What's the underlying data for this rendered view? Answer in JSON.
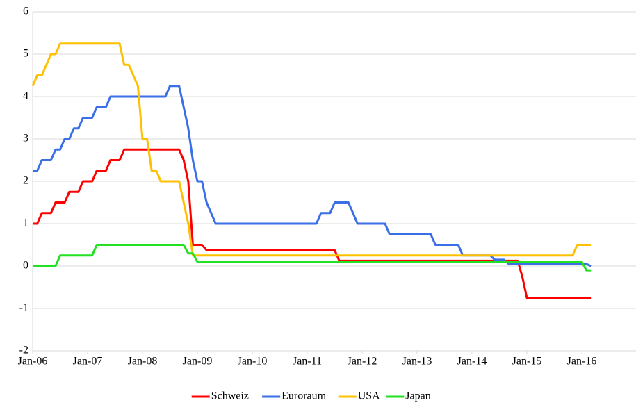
{
  "chart_data": {
    "type": "line",
    "x": [
      "2006-01",
      "2006-02",
      "2006-03",
      "2006-04",
      "2006-05",
      "2006-06",
      "2006-07",
      "2006-08",
      "2006-09",
      "2006-10",
      "2006-11",
      "2006-12",
      "2007-01",
      "2007-02",
      "2007-03",
      "2007-04",
      "2007-05",
      "2007-06",
      "2007-07",
      "2007-08",
      "2007-09",
      "2007-10",
      "2007-11",
      "2007-12",
      "2008-01",
      "2008-02",
      "2008-03",
      "2008-04",
      "2008-05",
      "2008-06",
      "2008-07",
      "2008-08",
      "2008-09",
      "2008-10",
      "2008-11",
      "2008-12",
      "2009-01",
      "2009-02",
      "2009-03",
      "2009-04",
      "2009-05",
      "2009-06",
      "2009-07",
      "2009-08",
      "2009-09",
      "2009-10",
      "2009-11",
      "2009-12",
      "2010-01",
      "2010-02",
      "2010-03",
      "2010-04",
      "2010-05",
      "2010-06",
      "2010-07",
      "2010-08",
      "2010-09",
      "2010-10",
      "2010-11",
      "2010-12",
      "2011-01",
      "2011-02",
      "2011-03",
      "2011-04",
      "2011-05",
      "2011-06",
      "2011-07",
      "2011-08",
      "2011-09",
      "2011-10",
      "2011-11",
      "2011-12",
      "2012-01",
      "2012-02",
      "2012-03",
      "2012-04",
      "2012-05",
      "2012-06",
      "2012-07",
      "2012-08",
      "2012-09",
      "2012-10",
      "2012-11",
      "2012-12",
      "2013-01",
      "2013-02",
      "2013-03",
      "2013-04",
      "2013-05",
      "2013-06",
      "2013-07",
      "2013-08",
      "2013-09",
      "2013-10",
      "2013-11",
      "2013-12",
      "2014-01",
      "2014-02",
      "2014-03",
      "2014-04",
      "2014-05",
      "2014-06",
      "2014-07",
      "2014-08",
      "2014-09",
      "2014-10",
      "2014-11",
      "2014-12",
      "2015-01",
      "2015-02",
      "2015-03",
      "2015-04",
      "2015-05",
      "2015-06",
      "2015-07",
      "2015-08",
      "2015-09",
      "2015-10",
      "2015-11",
      "2015-12",
      "2016-01",
      "2016-02",
      "2016-03"
    ],
    "series": [
      {
        "name": "Schweiz",
        "color": "#ff0000",
        "values": [
          1,
          1,
          1.25,
          1.25,
          1.25,
          1.5,
          1.5,
          1.5,
          1.75,
          1.75,
          1.75,
          2,
          2,
          2,
          2.25,
          2.25,
          2.25,
          2.5,
          2.5,
          2.5,
          2.75,
          2.75,
          2.75,
          2.75,
          2.75,
          2.75,
          2.75,
          2.75,
          2.75,
          2.75,
          2.75,
          2.75,
          2.75,
          2.5,
          2,
          0.5,
          0.5,
          0.5,
          0.375,
          0.375,
          0.375,
          0.375,
          0.375,
          0.375,
          0.375,
          0.375,
          0.375,
          0.375,
          0.375,
          0.375,
          0.375,
          0.375,
          0.375,
          0.375,
          0.375,
          0.375,
          0.375,
          0.375,
          0.375,
          0.375,
          0.375,
          0.375,
          0.375,
          0.375,
          0.375,
          0.375,
          0.375,
          0.125,
          0.125,
          0.125,
          0.125,
          0.125,
          0.125,
          0.125,
          0.125,
          0.125,
          0.125,
          0.125,
          0.125,
          0.125,
          0.125,
          0.125,
          0.125,
          0.125,
          0.125,
          0.125,
          0.125,
          0.125,
          0.125,
          0.125,
          0.125,
          0.125,
          0.125,
          0.125,
          0.125,
          0.125,
          0.125,
          0.125,
          0.125,
          0.125,
          0.125,
          0.125,
          0.125,
          0.125,
          0.125,
          0.125,
          0.125,
          -0.25,
          -0.75,
          -0.75,
          -0.75,
          -0.75,
          -0.75,
          -0.75,
          -0.75,
          -0.75,
          -0.75,
          -0.75,
          -0.75,
          -0.75,
          -0.75,
          -0.75,
          -0.75
        ]
      },
      {
        "name": "Euroraum",
        "color": "#3a6fe6",
        "values": [
          2.25,
          2.25,
          2.5,
          2.5,
          2.5,
          2.75,
          2.75,
          3,
          3,
          3.25,
          3.25,
          3.5,
          3.5,
          3.5,
          3.75,
          3.75,
          3.75,
          4,
          4,
          4,
          4,
          4,
          4,
          4,
          4,
          4,
          4,
          4,
          4,
          4,
          4.25,
          4.25,
          4.25,
          3.75,
          3.25,
          2.5,
          2,
          2,
          1.5,
          1.25,
          1,
          1,
          1,
          1,
          1,
          1,
          1,
          1,
          1,
          1,
          1,
          1,
          1,
          1,
          1,
          1,
          1,
          1,
          1,
          1,
          1,
          1,
          1,
          1.25,
          1.25,
          1.25,
          1.5,
          1.5,
          1.5,
          1.5,
          1.25,
          1,
          1,
          1,
          1,
          1,
          1,
          1,
          0.75,
          0.75,
          0.75,
          0.75,
          0.75,
          0.75,
          0.75,
          0.75,
          0.75,
          0.75,
          0.5,
          0.5,
          0.5,
          0.5,
          0.5,
          0.5,
          0.25,
          0.25,
          0.25,
          0.25,
          0.25,
          0.25,
          0.25,
          0.15,
          0.15,
          0.15,
          0.05,
          0.05,
          0.05,
          0.05,
          0.05,
          0.05,
          0.05,
          0.05,
          0.05,
          0.05,
          0.05,
          0.05,
          0.05,
          0.05,
          0.05,
          0.05,
          0.05,
          0.05,
          0
        ]
      },
      {
        "name": "USA",
        "color": "#ffc000",
        "values": [
          4.25,
          4.5,
          4.5,
          4.75,
          5,
          5,
          5.25,
          5.25,
          5.25,
          5.25,
          5.25,
          5.25,
          5.25,
          5.25,
          5.25,
          5.25,
          5.25,
          5.25,
          5.25,
          5.25,
          4.75,
          4.75,
          4.5,
          4.25,
          3,
          3,
          2.25,
          2.25,
          2,
          2,
          2,
          2,
          2,
          1.5,
          1,
          0.25,
          0.25,
          0.25,
          0.25,
          0.25,
          0.25,
          0.25,
          0.25,
          0.25,
          0.25,
          0.25,
          0.25,
          0.25,
          0.25,
          0.25,
          0.25,
          0.25,
          0.25,
          0.25,
          0.25,
          0.25,
          0.25,
          0.25,
          0.25,
          0.25,
          0.25,
          0.25,
          0.25,
          0.25,
          0.25,
          0.25,
          0.25,
          0.25,
          0.25,
          0.25,
          0.25,
          0.25,
          0.25,
          0.25,
          0.25,
          0.25,
          0.25,
          0.25,
          0.25,
          0.25,
          0.25,
          0.25,
          0.25,
          0.25,
          0.25,
          0.25,
          0.25,
          0.25,
          0.25,
          0.25,
          0.25,
          0.25,
          0.25,
          0.25,
          0.25,
          0.25,
          0.25,
          0.25,
          0.25,
          0.25,
          0.25,
          0.25,
          0.25,
          0.25,
          0.25,
          0.25,
          0.25,
          0.25,
          0.25,
          0.25,
          0.25,
          0.25,
          0.25,
          0.25,
          0.25,
          0.25,
          0.25,
          0.25,
          0.25,
          0.5,
          0.5,
          0.5,
          0.5
        ]
      },
      {
        "name": "Japan",
        "color": "#22e022",
        "values": [
          0,
          0,
          0,
          0,
          0,
          0,
          0.25,
          0.25,
          0.25,
          0.25,
          0.25,
          0.25,
          0.25,
          0.25,
          0.5,
          0.5,
          0.5,
          0.5,
          0.5,
          0.5,
          0.5,
          0.5,
          0.5,
          0.5,
          0.5,
          0.5,
          0.5,
          0.5,
          0.5,
          0.5,
          0.5,
          0.5,
          0.5,
          0.5,
          0.3,
          0.3,
          0.1,
          0.1,
          0.1,
          0.1,
          0.1,
          0.1,
          0.1,
          0.1,
          0.1,
          0.1,
          0.1,
          0.1,
          0.1,
          0.1,
          0.1,
          0.1,
          0.1,
          0.1,
          0.1,
          0.1,
          0.1,
          0.1,
          0.1,
          0.1,
          0.1,
          0.1,
          0.1,
          0.1,
          0.1,
          0.1,
          0.1,
          0.1,
          0.1,
          0.1,
          0.1,
          0.1,
          0.1,
          0.1,
          0.1,
          0.1,
          0.1,
          0.1,
          0.1,
          0.1,
          0.1,
          0.1,
          0.1,
          0.1,
          0.1,
          0.1,
          0.1,
          0.1,
          0.1,
          0.1,
          0.1,
          0.1,
          0.1,
          0.1,
          0.1,
          0.1,
          0.1,
          0.1,
          0.1,
          0.1,
          0.1,
          0.1,
          0.1,
          0.1,
          0.1,
          0.1,
          0.1,
          0.1,
          0.1,
          0.1,
          0.1,
          0.1,
          0.1,
          0.1,
          0.1,
          0.1,
          0.1,
          0.1,
          0.1,
          0.1,
          0.1,
          -0.1,
          -0.1
        ]
      }
    ],
    "ylim": [
      -2,
      6
    ],
    "yticks": [
      -2,
      -1,
      0,
      1,
      2,
      3,
      4,
      5,
      6
    ],
    "xticks": [
      {
        "value": "2006-01",
        "label": "Jan-06"
      },
      {
        "value": "2007-01",
        "label": "Jan-07"
      },
      {
        "value": "2008-01",
        "label": "Jan-08"
      },
      {
        "value": "2009-01",
        "label": "Jan-09"
      },
      {
        "value": "2010-01",
        "label": "Jan-10"
      },
      {
        "value": "2011-01",
        "label": "Jan-11"
      },
      {
        "value": "2012-01",
        "label": "Jan-12"
      },
      {
        "value": "2013-01",
        "label": "Jan-13"
      },
      {
        "value": "2014-01",
        "label": "Jan-14"
      },
      {
        "value": "2015-01",
        "label": "Jan-15"
      },
      {
        "value": "2016-01",
        "label": "Jan-16"
      }
    ],
    "grid": true,
    "legend": "bottom"
  }
}
